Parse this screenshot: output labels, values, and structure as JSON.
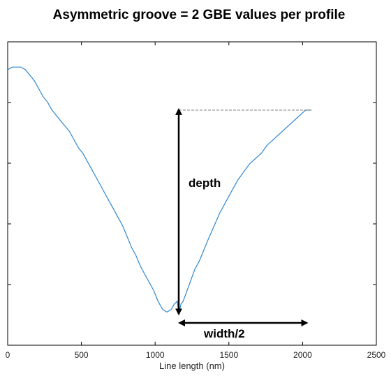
{
  "chart_data": {
    "type": "line",
    "title": "Asymmetric groove = 2 GBE values per profile",
    "xlabel": "Line length (nm)",
    "ylabel": "",
    "xlim": [
      0,
      2500
    ],
    "ylim": [
      0,
      1
    ],
    "x_ticks": [
      "0",
      "500",
      "1000",
      "1500",
      "2000",
      "2500"
    ],
    "y_tick_count": 4,
    "grid": false,
    "line_color": "#2f86d1",
    "series": [
      {
        "x": [
          0,
          30,
          60,
          90,
          120,
          150,
          180,
          210,
          240,
          270,
          300,
          330,
          360,
          390,
          420,
          450,
          480,
          510,
          540,
          570,
          600,
          630,
          660,
          690,
          720,
          750,
          780,
          810,
          840,
          870,
          900,
          930,
          960,
          990,
          1020,
          1050,
          1080,
          1110,
          1130,
          1150,
          1160,
          1175,
          1190,
          1210,
          1230,
          1250,
          1270,
          1300,
          1330,
          1360,
          1400,
          1440,
          1480,
          1520,
          1560,
          1600,
          1640,
          1680,
          1720,
          1760,
          1800,
          1840,
          1880,
          1920,
          1960,
          2000,
          2020,
          2040,
          2060
        ],
        "y": [
          0.93,
          0.94,
          0.94,
          0.94,
          0.93,
          0.91,
          0.89,
          0.86,
          0.83,
          0.81,
          0.78,
          0.76,
          0.74,
          0.72,
          0.7,
          0.67,
          0.64,
          0.62,
          0.59,
          0.56,
          0.53,
          0.5,
          0.47,
          0.44,
          0.41,
          0.38,
          0.35,
          0.31,
          0.27,
          0.24,
          0.2,
          0.17,
          0.14,
          0.11,
          0.07,
          0.04,
          0.03,
          0.04,
          0.06,
          0.07,
          0.02,
          0.06,
          0.07,
          0.1,
          0.13,
          0.16,
          0.19,
          0.22,
          0.26,
          0.3,
          0.35,
          0.4,
          0.44,
          0.48,
          0.52,
          0.55,
          0.58,
          0.6,
          0.62,
          0.65,
          0.67,
          0.69,
          0.71,
          0.73,
          0.75,
          0.77,
          0.78,
          0.78,
          0.78
        ]
      }
    ],
    "annotations": [
      {
        "text": "depth",
        "type": "vertical-double-arrow",
        "x": 1160,
        "y_from": 0.02,
        "y_to": 0.78
      },
      {
        "text": "width/2",
        "type": "horizontal-double-arrow",
        "y": 0.0,
        "x_from": 1160,
        "x_to": 2010
      },
      {
        "text": "",
        "type": "dashed-reference-line",
        "y": 0.78,
        "x_from": 1160,
        "x_to": 2060
      }
    ]
  }
}
